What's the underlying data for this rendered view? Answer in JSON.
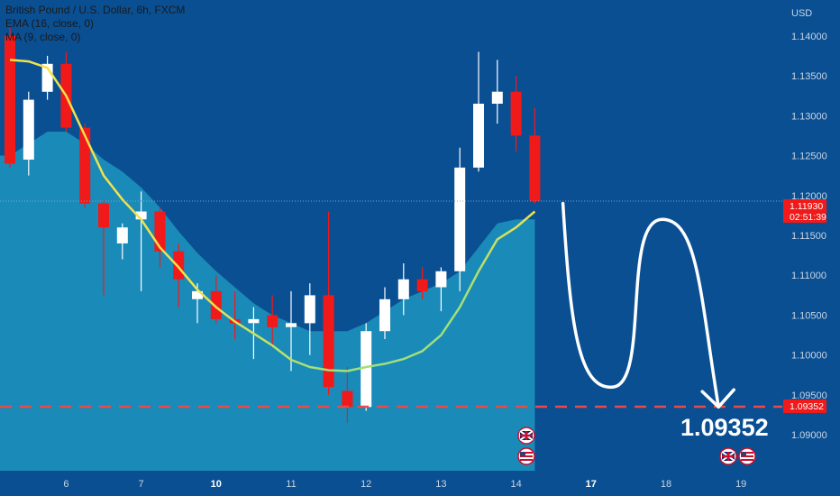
{
  "legend": {
    "title": "British Pound / U.S. Dollar, 6h, FXCM",
    "ema": "EMA (16, close, 0)",
    "ma": "MA (9, close, 0)"
  },
  "currency": "USD",
  "last_price": {
    "value": "1.11930",
    "countdown": "02:51:39"
  },
  "target": {
    "value": "1.09352",
    "big_label": "1.09352"
  },
  "colors": {
    "background": "#0a4f92",
    "area": "#1a8ab8",
    "up_candle": "#ffffff",
    "down_candle": "#f01a1a",
    "ema": "#f2e24a",
    "ma": "#9fe07a",
    "target_line": "#e84b4b",
    "projection": "#ffffff"
  },
  "icons": [
    "uk-flag-icon",
    "us-flag-icon"
  ],
  "chart_data": {
    "type": "candlestick",
    "title": "British Pound / U.S. Dollar, 6h, FXCM",
    "ylim": [
      1.0855,
      1.1445
    ],
    "y_ticks": [
      "1.14000",
      "1.13500",
      "1.13000",
      "1.12500",
      "1.12000",
      "1.11500",
      "1.11000",
      "1.10500",
      "1.10000",
      "1.09500",
      "1.09000"
    ],
    "x_ticks": [
      {
        "label": "6",
        "x": 3.0,
        "bold": false
      },
      {
        "label": "7",
        "x": 7.0,
        "bold": false
      },
      {
        "label": "10",
        "x": 11.0,
        "bold": true
      },
      {
        "label": "11",
        "x": 15.0,
        "bold": false
      },
      {
        "label": "12",
        "x": 19.0,
        "bold": false
      },
      {
        "label": "13",
        "x": 23.0,
        "bold": false
      },
      {
        "label": "14",
        "x": 27.0,
        "bold": false
      },
      {
        "label": "17",
        "x": 31.0,
        "bold": true
      },
      {
        "label": "18",
        "x": 35.0,
        "bold": false
      },
      {
        "label": "19",
        "x": 39.0,
        "bold": false
      }
    ],
    "candles": [
      {
        "o": 1.14,
        "h": 1.141,
        "l": 1.1235,
        "c": 1.124
      },
      {
        "o": 1.1245,
        "h": 1.133,
        "l": 1.1225,
        "c": 1.132
      },
      {
        "o": 1.133,
        "h": 1.1375,
        "l": 1.132,
        "c": 1.1365
      },
      {
        "o": 1.1365,
        "h": 1.138,
        "l": 1.128,
        "c": 1.1285
      },
      {
        "o": 1.1285,
        "h": 1.129,
        "l": 1.1185,
        "c": 1.119
      },
      {
        "o": 1.119,
        "h": 1.1195,
        "l": 1.1075,
        "c": 1.116
      },
      {
        "o": 1.114,
        "h": 1.1165,
        "l": 1.112,
        "c": 1.116
      },
      {
        "o": 1.117,
        "h": 1.1205,
        "l": 1.108,
        "c": 1.118
      },
      {
        "o": 1.118,
        "h": 1.1185,
        "l": 1.111,
        "c": 1.113
      },
      {
        "o": 1.113,
        "h": 1.114,
        "l": 1.106,
        "c": 1.1095
      },
      {
        "o": 1.107,
        "h": 1.109,
        "l": 1.104,
        "c": 1.108
      },
      {
        "o": 1.108,
        "h": 1.11,
        "l": 1.104,
        "c": 1.1045
      },
      {
        "o": 1.1045,
        "h": 1.108,
        "l": 1.102,
        "c": 1.104
      },
      {
        "o": 1.104,
        "h": 1.106,
        "l": 1.0995,
        "c": 1.1045
      },
      {
        "o": 1.105,
        "h": 1.1075,
        "l": 1.101,
        "c": 1.1035
      },
      {
        "o": 1.1035,
        "h": 1.108,
        "l": 1.098,
        "c": 1.104
      },
      {
        "o": 1.104,
        "h": 1.109,
        "l": 1.1,
        "c": 1.1075
      },
      {
        "o": 1.1075,
        "h": 1.118,
        "l": 1.095,
        "c": 1.096
      },
      {
        "o": 1.0955,
        "h": 1.0985,
        "l": 1.0915,
        "c": 1.0935
      },
      {
        "o": 1.0935,
        "h": 1.104,
        "l": 1.093,
        "c": 1.103
      },
      {
        "o": 1.103,
        "h": 1.1085,
        "l": 1.102,
        "c": 1.107
      },
      {
        "o": 1.107,
        "h": 1.1115,
        "l": 1.105,
        "c": 1.1095
      },
      {
        "o": 1.1095,
        "h": 1.111,
        "l": 1.107,
        "c": 1.108
      },
      {
        "o": 1.1085,
        "h": 1.111,
        "l": 1.1055,
        "c": 1.1105
      },
      {
        "o": 1.1105,
        "h": 1.126,
        "l": 1.108,
        "c": 1.1235
      },
      {
        "o": 1.1235,
        "h": 1.138,
        "l": 1.123,
        "c": 1.1315
      },
      {
        "o": 1.1315,
        "h": 1.137,
        "l": 1.129,
        "c": 1.133
      },
      {
        "o": 1.133,
        "h": 1.135,
        "l": 1.1255,
        "c": 1.1275
      },
      {
        "o": 1.1275,
        "h": 1.131,
        "l": 1.119,
        "c": 1.1193
      }
    ],
    "ema": [
      1.137,
      1.1368,
      1.136,
      1.1325,
      1.1275,
      1.1225,
      1.1195,
      1.117,
      1.1135,
      1.111,
      1.1082,
      1.106,
      1.1042,
      1.1027,
      1.1012,
      1.0994,
      1.0985,
      1.0981,
      1.098,
      1.0985,
      1.0989,
      1.0995,
      1.1005,
      1.1025,
      1.106,
      1.1105,
      1.1145,
      1.116,
      1.118
    ],
    "area": [
      1.125,
      1.1265,
      1.128,
      1.128,
      1.1265,
      1.1245,
      1.123,
      1.121,
      1.1185,
      1.1155,
      1.1128,
      1.1105,
      1.1085,
      1.1065,
      1.105,
      1.104,
      1.103,
      1.103,
      1.103,
      1.104,
      1.1055,
      1.107,
      1.108,
      1.109,
      1.1105,
      1.1135,
      1.1165,
      1.117,
      1.117
    ],
    "projection": [
      [
        29.5,
        1.119
      ],
      [
        32.2,
        1.096
      ],
      [
        34.8,
        1.117
      ],
      [
        37.8,
        1.0935
      ]
    ],
    "target_price": 1.09352,
    "last_price": 1.1193
  }
}
